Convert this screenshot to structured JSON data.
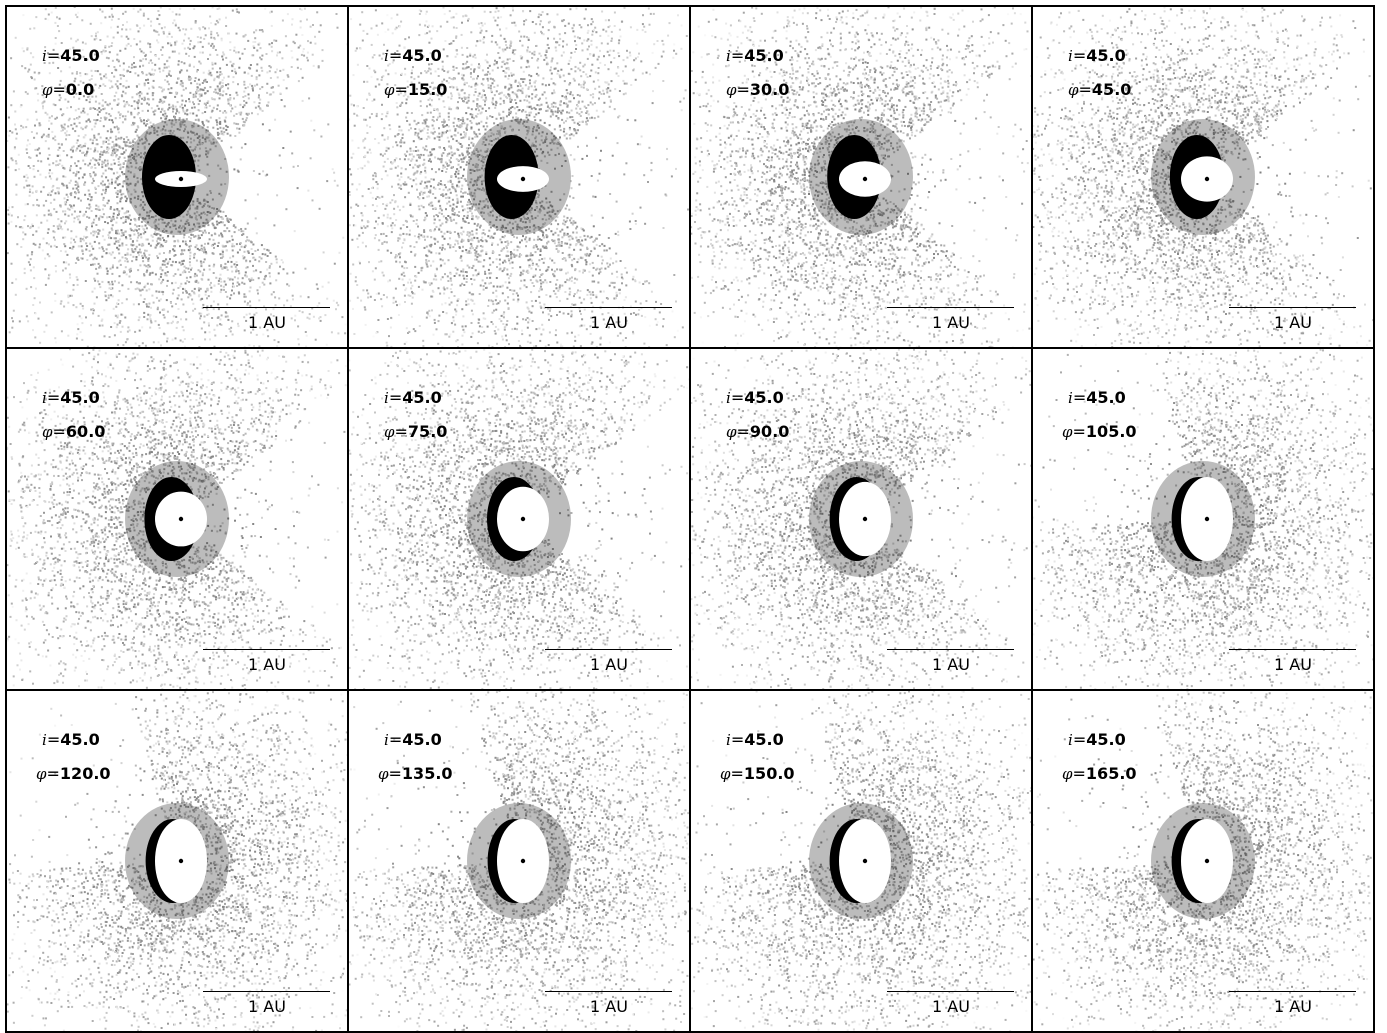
{
  "figure": {
    "scale_label": "1 AU",
    "panels": [
      {
        "i_label": "i",
        "i_value": "45.0",
        "phi_label": "φ",
        "phi_value": "0.0",
        "phi_deg": 0
      },
      {
        "i_label": "i",
        "i_value": "45.0",
        "phi_label": "φ",
        "phi_value": "15.0",
        "phi_deg": 15
      },
      {
        "i_label": "i",
        "i_value": "45.0",
        "phi_label": "φ",
        "phi_value": "30.0",
        "phi_deg": 30
      },
      {
        "i_label": "i",
        "i_value": "45.0",
        "phi_label": "φ",
        "phi_value": "45.0",
        "phi_deg": 45
      },
      {
        "i_label": "i",
        "i_value": "45.0",
        "phi_label": "φ",
        "phi_value": "60.0",
        "phi_deg": 60
      },
      {
        "i_label": "i",
        "i_value": "45.0",
        "phi_label": "φ",
        "phi_value": "75.0",
        "phi_deg": 75
      },
      {
        "i_label": "i",
        "i_value": "45.0",
        "phi_label": "φ",
        "phi_value": "90.0",
        "phi_deg": 90
      },
      {
        "i_label": "i",
        "i_value": "45.0",
        "phi_label": "φ",
        "phi_value": "105.0",
        "phi_deg": 105
      },
      {
        "i_label": "i",
        "i_value": "45.0",
        "phi_label": "φ",
        "phi_value": "120.0",
        "phi_deg": 120
      },
      {
        "i_label": "i",
        "i_value": "45.0",
        "phi_label": "φ",
        "phi_value": "135.0",
        "phi_deg": 135
      },
      {
        "i_label": "i",
        "i_value": "45.0",
        "phi_label": "φ",
        "phi_value": "150.0",
        "phi_deg": 150
      },
      {
        "i_label": "i",
        "i_value": "45.0",
        "phi_label": "φ",
        "phi_value": "165.0",
        "phi_deg": 165
      }
    ]
  }
}
